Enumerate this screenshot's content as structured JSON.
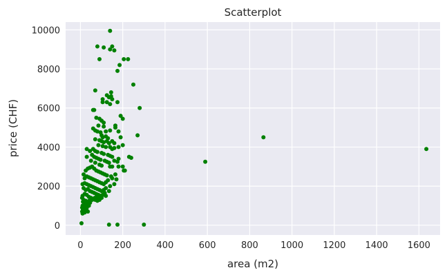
{
  "chart_data": {
    "type": "scatter",
    "title": "Scatterplot",
    "xlabel": "area (m2)",
    "ylabel": "price (CHF)",
    "xlim": [
      -70,
      1700
    ],
    "ylim": [
      -500,
      10400
    ],
    "xticks": [
      0,
      200,
      400,
      600,
      800,
      1000,
      1200,
      1400,
      1600
    ],
    "yticks": [
      0,
      2000,
      4000,
      6000,
      8000,
      10000
    ],
    "grid": true,
    "legend": "none",
    "colors": {
      "point": "#008000",
      "background": "#eaeaf2",
      "grid": "#ffffff"
    },
    "series": [
      {
        "x": [
          140,
          80,
          110,
          140,
          160,
          90,
          150,
          205,
          225,
          185,
          175,
          250,
          70,
          145,
          125,
          135,
          145,
          150,
          105,
          105,
          125,
          140,
          175,
          60,
          65,
          280,
          75,
          90,
          100,
          110,
          190,
          200,
          85,
          110,
          60,
          165,
          70,
          80,
          95,
          120,
          140,
          165,
          100,
          105,
          120,
          180,
          270,
          70,
          90,
          100,
          110,
          125,
          130,
          135,
          150,
          160,
          190,
          85,
          105,
          120,
          140,
          150,
          160,
          180,
          200,
          230,
          240,
          60,
          70,
          80,
          100,
          110,
          130,
          140,
          150,
          180,
          30,
          45,
          55,
          65,
          75,
          85,
          95,
          115,
          125,
          135,
          160,
          175,
          30,
          50,
          70,
          90,
          100,
          140,
          150,
          180,
          200,
          210,
          15,
          25,
          35,
          45,
          55,
          65,
          75,
          85,
          95,
          105,
          115,
          125,
          145,
          165,
          205,
          20,
          30,
          40,
          50,
          60,
          70,
          80,
          90,
          100,
          110,
          120,
          130,
          150,
          170,
          10,
          20,
          30,
          40,
          50,
          60,
          70,
          80,
          90,
          100,
          110,
          120,
          140,
          160,
          15,
          25,
          35,
          45,
          55,
          65,
          75,
          85,
          95,
          105,
          115,
          135,
          10,
          20,
          30,
          40,
          50,
          60,
          70,
          80,
          90,
          100,
          120,
          8,
          15,
          25,
          35,
          45,
          55,
          65,
          75,
          85,
          95,
          12,
          22,
          32,
          42,
          52,
          62,
          72,
          82,
          10,
          18,
          28,
          38,
          48,
          58,
          68,
          80,
          8,
          15,
          25,
          35,
          45,
          12,
          20,
          30,
          40,
          8,
          15,
          28,
          10,
          20,
          35,
          5,
          135,
          175,
          300,
          590,
          865,
          1635
        ],
        "y": [
          9950,
          9150,
          9100,
          9000,
          8950,
          8500,
          9150,
          8500,
          8500,
          8200,
          7900,
          7200,
          6900,
          6800,
          6650,
          6550,
          6600,
          6450,
          6450,
          6300,
          6300,
          6200,
          6300,
          5900,
          5900,
          6000,
          5500,
          5450,
          5350,
          5250,
          5600,
          5450,
          5100,
          5050,
          4950,
          5100,
          4850,
          4800,
          4750,
          4800,
          4850,
          5000,
          4600,
          4500,
          4550,
          4800,
          4600,
          4400,
          4350,
          4300,
          4250,
          4300,
          4450,
          4200,
          4300,
          4200,
          4500,
          4100,
          4050,
          4000,
          4000,
          3900,
          3950,
          4000,
          4100,
          3500,
          3450,
          3900,
          3800,
          3750,
          3700,
          3650,
          3600,
          3550,
          3500,
          3400,
          3900,
          3800,
          3600,
          3500,
          3450,
          3400,
          3350,
          3300,
          3250,
          3200,
          3300,
          3250,
          3500,
          3300,
          3200,
          3100,
          3050,
          3000,
          3000,
          3000,
          3000,
          2800,
          2600,
          2800,
          2900,
          2950,
          3000,
          2900,
          2800,
          2750,
          2700,
          2650,
          2600,
          2550,
          2500,
          2600,
          2800,
          2400,
          2500,
          2450,
          2400,
          2350,
          2300,
          2250,
          2200,
          2150,
          2100,
          2200,
          2300,
          2400,
          2350,
          2100,
          2150,
          2100,
          2050,
          2000,
          1950,
          1900,
          1850,
          1800,
          1750,
          1800,
          1900,
          2000,
          2100,
          1900,
          1800,
          1850,
          1750,
          1700,
          1650,
          1600,
          1550,
          1500,
          1550,
          1650,
          1750,
          1500,
          1600,
          1550,
          1450,
          1400,
          1350,
          1300,
          1250,
          1300,
          1400,
          1500,
          1400,
          1300,
          1250,
          1200,
          1150,
          1300,
          1350,
          1400,
          1450,
          1500,
          1200,
          1100,
          1150,
          1250,
          1300,
          1350,
          1400,
          1450,
          1000,
          1050,
          1100,
          1200,
          1250,
          1350,
          1400,
          1500,
          900,
          950,
          1000,
          1100,
          1150,
          800,
          850,
          900,
          1000,
          700,
          750,
          800,
          600,
          650,
          700,
          100,
          30,
          30,
          30,
          3250,
          4500,
          3900
        ]
      }
    ]
  }
}
